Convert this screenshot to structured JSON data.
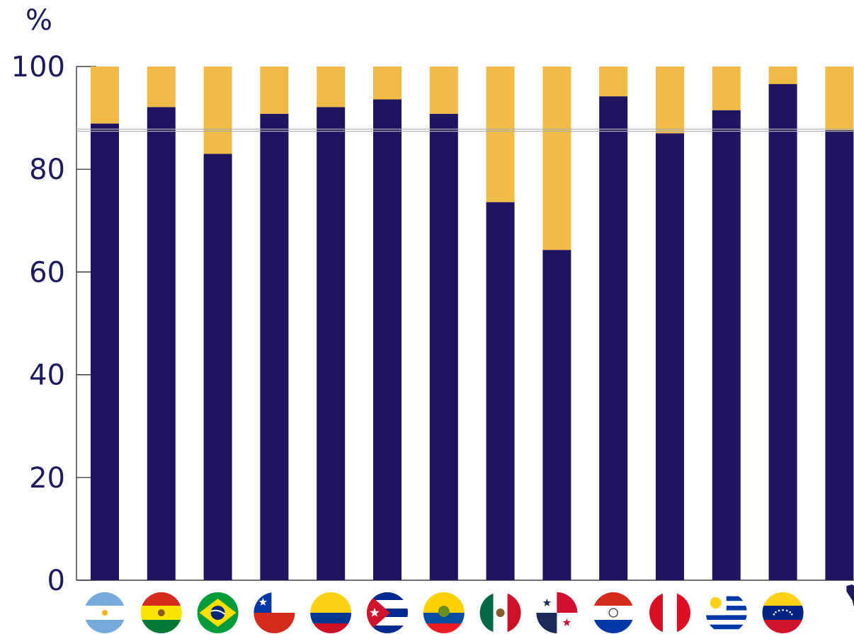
{
  "chart_data": {
    "type": "bar",
    "stacked": true,
    "unit_label": "%",
    "ylim": [
      0,
      100
    ],
    "yticks": [
      0,
      20,
      40,
      60,
      80,
      100
    ],
    "ytick_labels": [
      "0",
      "20",
      "40",
      "60",
      "80",
      "100"
    ],
    "categories": [
      "Argentina",
      "Bolivia",
      "Brazil",
      "Chile",
      "Colombia",
      "Cuba",
      "Ecuador",
      "Mexico",
      "Panama",
      "Paraguay",
      "Peru",
      "Uruguay",
      "Venezuela",
      "Latin America"
    ],
    "category_icons": [
      "flag-argentina-icon",
      "flag-bolivia-icon",
      "flag-brazil-icon",
      "flag-chile-icon",
      "flag-colombia-icon",
      "flag-cuba-icon",
      "flag-ecuador-icon",
      "flag-mexico-icon",
      "flag-panama-icon",
      "flag-paraguay-icon",
      "flag-peru-icon",
      "flag-uruguay-icon",
      "flag-venezuela-icon",
      "latin-america-map-icon"
    ],
    "series": [
      {
        "values": [
          88.9,
          92.1,
          83.0,
          90.8,
          92.1,
          93.6,
          90.8,
          73.6,
          64.3,
          94.2,
          87.0,
          91.5,
          96.6,
          87.6
        ],
        "color": "#1e1460"
      },
      {
        "values": [
          11.1,
          7.9,
          17.0,
          9.2,
          7.9,
          6.4,
          9.2,
          26.4,
          35.7,
          5.8,
          13.0,
          8.5,
          3.4,
          12.4
        ],
        "color": "#f0bb47"
      }
    ],
    "reference_line": {
      "value": 87.6,
      "color": "#b0b0b0"
    },
    "grid": false,
    "legend": "none"
  }
}
